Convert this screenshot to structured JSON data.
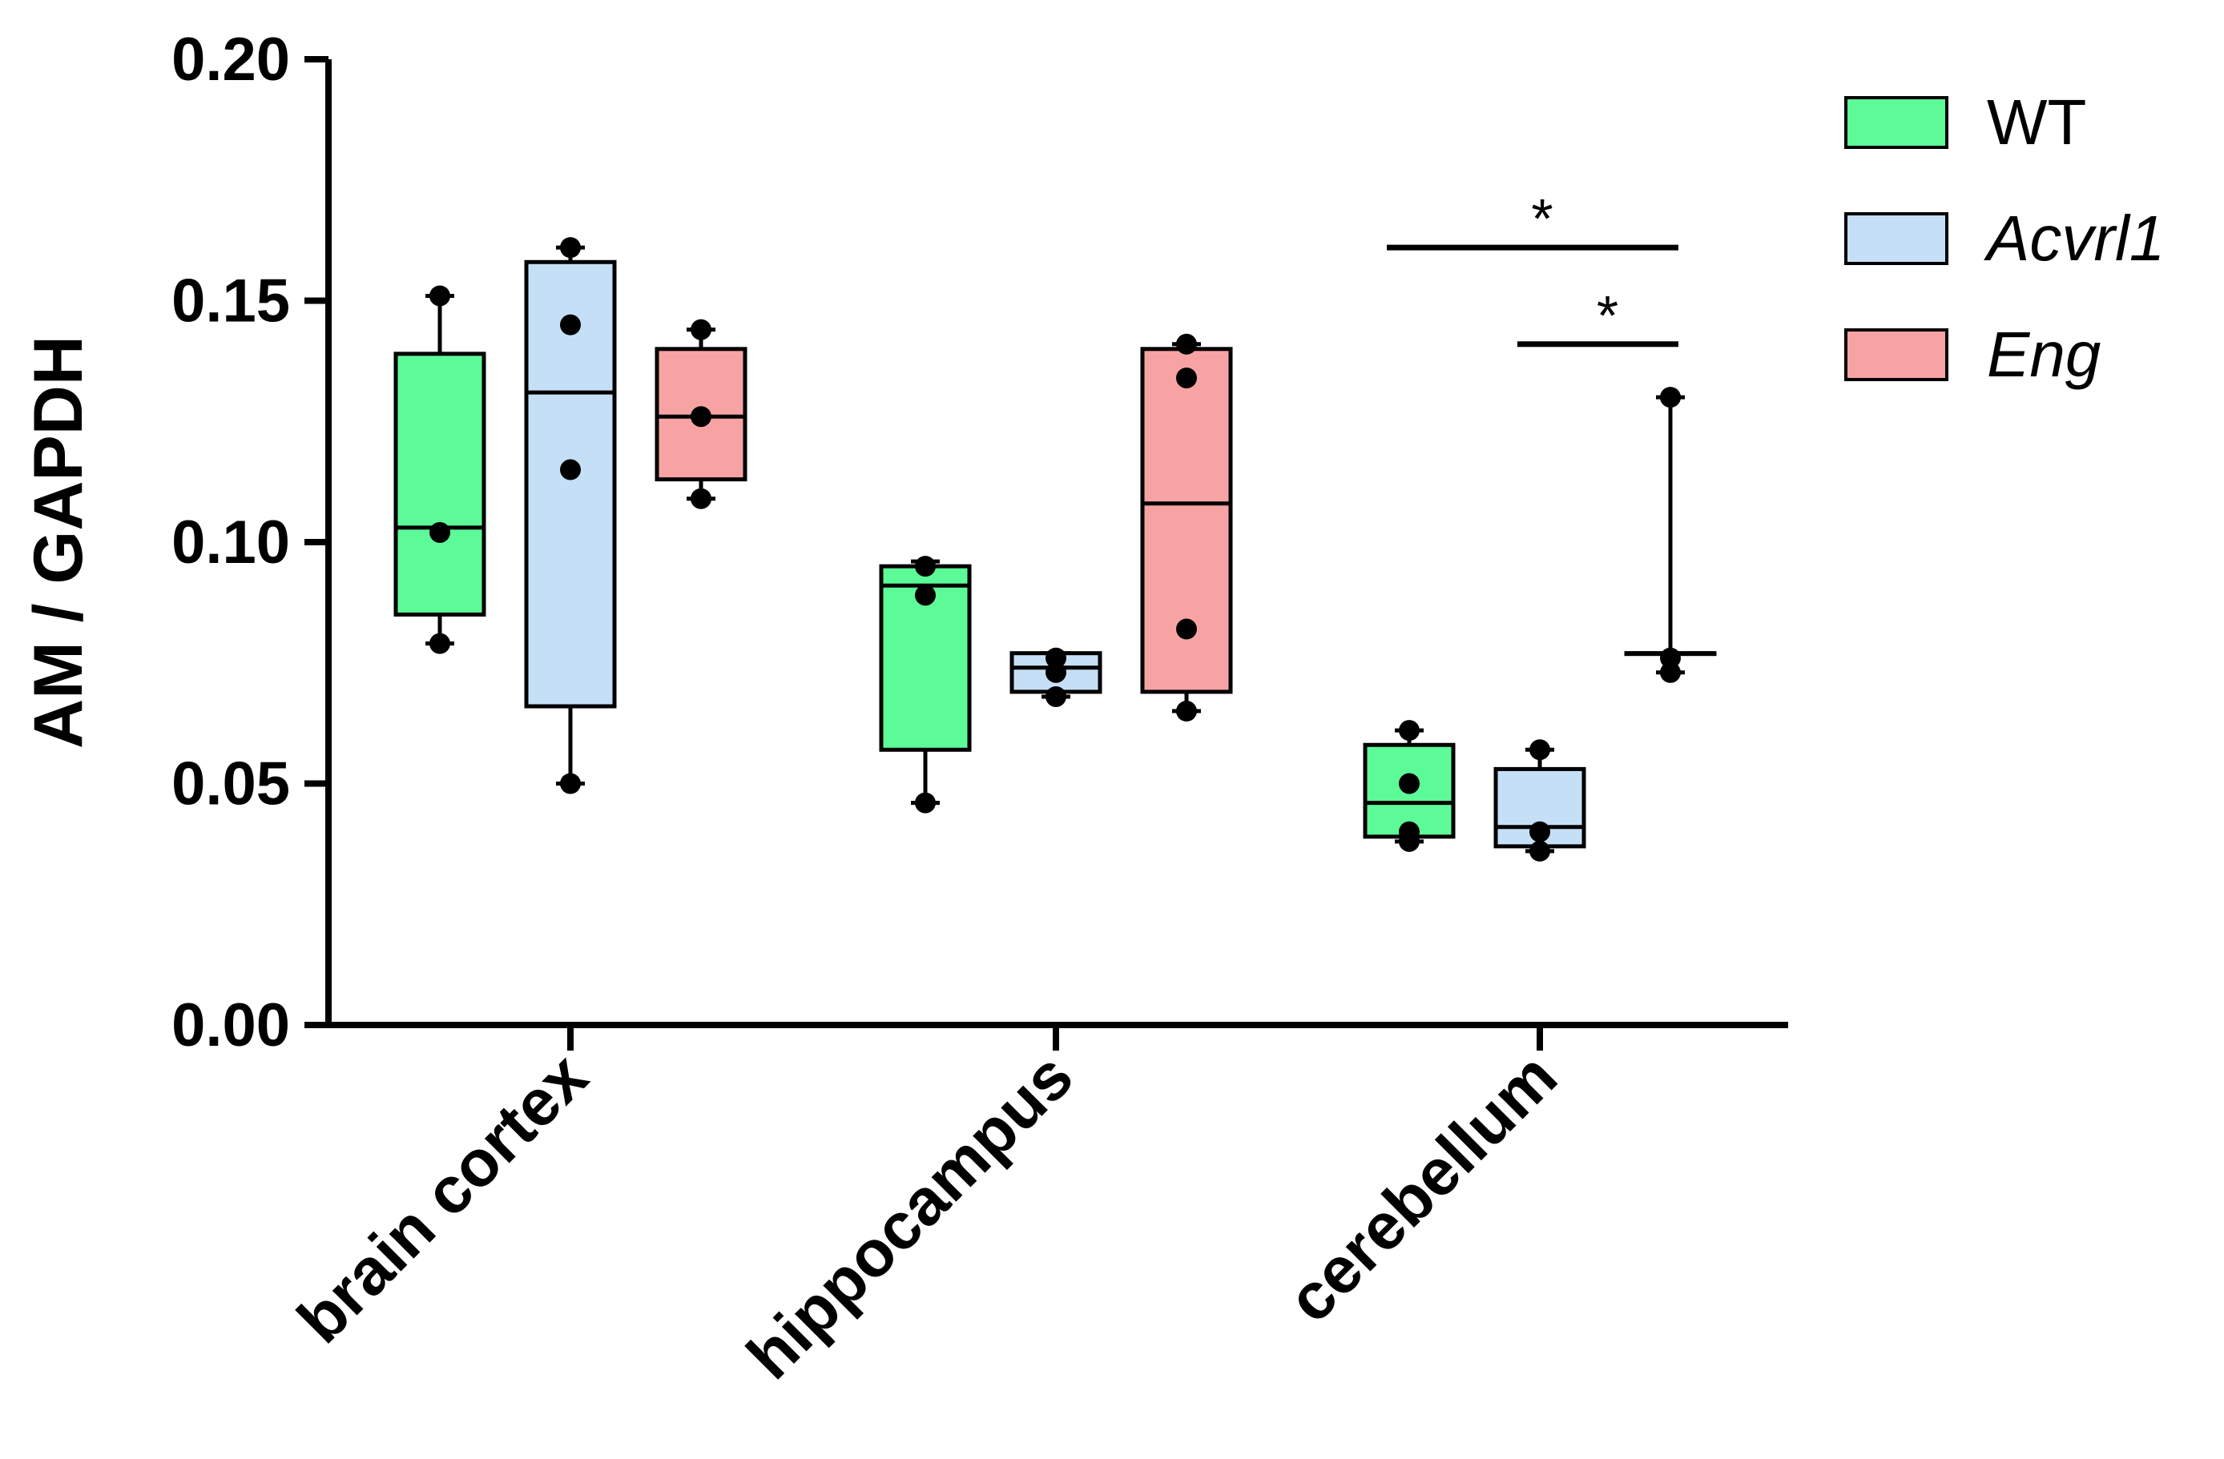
{
  "chart_data": {
    "type": "boxplot",
    "title": "",
    "xlabel": "",
    "ylabel": "AM / GAPDH",
    "ylim": [
      0,
      0.2
    ],
    "yticks": [
      "0.00",
      "0.05",
      "0.10",
      "0.15",
      "0.20"
    ],
    "categories": [
      "brain cortex",
      "hippocampus",
      "cerebellum"
    ],
    "legend_position": "top-right",
    "series": [
      {
        "name": "WT",
        "color": "#5dfa98",
        "italic": false,
        "boxes": [
          {
            "min": 0.079,
            "q1": 0.085,
            "median": 0.103,
            "q3": 0.139,
            "max": 0.151,
            "points": [
              0.151,
              0.102,
              0.079
            ]
          },
          {
            "min": 0.046,
            "q1": 0.057,
            "median": 0.091,
            "q3": 0.095,
            "max": 0.096,
            "points": [
              0.095,
              0.089,
              0.046
            ]
          },
          {
            "min": 0.038,
            "q1": 0.039,
            "median": 0.046,
            "q3": 0.058,
            "max": 0.061,
            "points": [
              0.061,
              0.05,
              0.04,
              0.038
            ]
          }
        ]
      },
      {
        "name": "Acvrl1",
        "color": "#c5e0f6",
        "italic": true,
        "boxes": [
          {
            "min": 0.05,
            "q1": 0.066,
            "median": 0.131,
            "q3": 0.158,
            "max": 0.161,
            "points": [
              0.161,
              0.145,
              0.115,
              0.05
            ]
          },
          {
            "min": 0.068,
            "q1": 0.069,
            "median": 0.074,
            "q3": 0.077,
            "max": 0.077,
            "points": [
              0.076,
              0.073,
              0.068
            ]
          },
          {
            "min": 0.036,
            "q1": 0.037,
            "median": 0.041,
            "q3": 0.053,
            "max": 0.057,
            "points": [
              0.057,
              0.04,
              0.036
            ]
          }
        ]
      },
      {
        "name": "Eng",
        "color": "#f8a3a3",
        "italic": true,
        "boxes": [
          {
            "min": 0.109,
            "q1": 0.113,
            "median": 0.126,
            "q3": 0.14,
            "max": 0.144,
            "points": [
              0.144,
              0.126,
              0.109
            ]
          },
          {
            "min": 0.065,
            "q1": 0.069,
            "median": 0.108,
            "q3": 0.14,
            "max": 0.141,
            "points": [
              0.141,
              0.134,
              0.082,
              0.065
            ]
          },
          {
            "min": 0.073,
            "q1": 0.077,
            "median": 0.077,
            "q3": 0.077,
            "max": 0.13,
            "points": [
              0.13,
              0.076,
              0.073
            ]
          }
        ]
      }
    ],
    "significance": [
      {
        "category": "cerebellum",
        "from_series": "WT",
        "to_series": "Eng",
        "y": 0.161,
        "label": "*"
      },
      {
        "category": "cerebellum",
        "from_series": "Acvrl1",
        "to_series": "Eng",
        "y": 0.141,
        "label": "*"
      }
    ]
  }
}
